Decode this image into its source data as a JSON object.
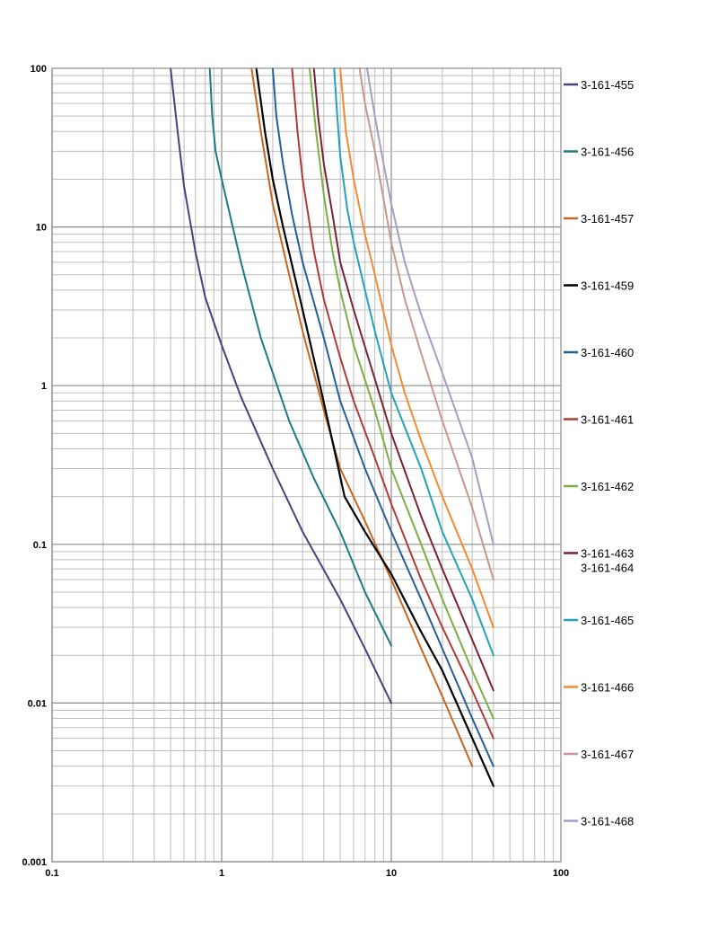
{
  "chart_data": {
    "type": "line",
    "x_scale": "log",
    "y_scale": "log",
    "xlim": [
      0.1,
      100
    ],
    "ylim": [
      0.001,
      100
    ],
    "x_ticks": [
      0.1,
      1,
      10,
      100
    ],
    "x_tick_labels": [
      "0.1",
      "1",
      "10",
      "100"
    ],
    "y_ticks": [
      0.001,
      0.01,
      0.1,
      1,
      10,
      100
    ],
    "y_tick_labels": [
      "0.001",
      "0.01",
      "0.1",
      "1",
      "10",
      "100"
    ],
    "grid": true,
    "legend_position": "right",
    "series": [
      {
        "name": "3-161-455",
        "color": "#4B3F7E",
        "x": [
          0.5,
          0.55,
          0.6,
          0.7,
          0.8,
          1,
          1.3,
          2,
          3,
          5,
          7,
          10
        ],
        "y": [
          100,
          40,
          18,
          7,
          3.6,
          1.8,
          0.85,
          0.3,
          0.12,
          0.045,
          0.022,
          0.01
        ]
      },
      {
        "name": "3-161-456",
        "color": "#1E7A85",
        "x": [
          0.85,
          0.88,
          0.92,
          1,
          1.3,
          1.7,
          2.5,
          3.5,
          5,
          7,
          10
        ],
        "y": [
          100,
          50,
          30,
          20,
          6,
          2,
          0.6,
          0.26,
          0.12,
          0.05,
          0.023
        ]
      },
      {
        "name": "3-161-457",
        "color": "#C4661F",
        "x": [
          1.5,
          1.7,
          2,
          2.5,
          3,
          4,
          5,
          7,
          10,
          15,
          20,
          30
        ],
        "y": [
          100,
          40,
          14,
          5,
          2.2,
          0.7,
          0.3,
          0.14,
          0.06,
          0.022,
          0.011,
          0.004
        ]
      },
      {
        "name": "3-161-459",
        "color": "#000000",
        "x": [
          1.6,
          1.8,
          2,
          2.3,
          3,
          3.8,
          4.6,
          5.3,
          7,
          10,
          15,
          20,
          30,
          40
        ],
        "y": [
          100,
          40,
          20,
          10,
          3,
          1,
          0.4,
          0.2,
          0.12,
          0.065,
          0.028,
          0.016,
          0.006,
          0.003
        ]
      },
      {
        "name": "3-161-460",
        "color": "#255F97",
        "x": [
          2,
          2.1,
          2.3,
          2.6,
          3,
          4,
          5,
          7,
          10,
          15,
          20,
          30,
          40
        ],
        "y": [
          100,
          50,
          25,
          12,
          6,
          2,
          0.8,
          0.3,
          0.12,
          0.045,
          0.022,
          0.008,
          0.004
        ]
      },
      {
        "name": "3-161-461",
        "color": "#B03A3A",
        "x": [
          2.6,
          2.8,
          3,
          3.5,
          4,
          5,
          6,
          8,
          10,
          15,
          20,
          30,
          40
        ],
        "y": [
          100,
          40,
          20,
          7,
          3.5,
          1.5,
          0.8,
          0.35,
          0.18,
          0.06,
          0.03,
          0.012,
          0.006
        ]
      },
      {
        "name": "3-161-462",
        "color": "#7DAD45",
        "x": [
          3.3,
          3.6,
          4,
          4.5,
          5,
          6,
          8,
          10,
          15,
          20,
          30,
          40
        ],
        "y": [
          100,
          40,
          16,
          7,
          4,
          1.8,
          0.7,
          0.3,
          0.1,
          0.045,
          0.016,
          0.008
        ]
      },
      {
        "name": "3-161-463",
        "color": "#7B2233",
        "x": [
          3.5,
          3.7,
          4,
          4.5,
          5,
          6,
          8,
          10,
          15,
          20,
          30,
          40
        ],
        "y": [
          100,
          50,
          25,
          12,
          6,
          3,
          1.1,
          0.5,
          0.15,
          0.07,
          0.025,
          0.012
        ]
      },
      {
        "name": "3-161-465",
        "color": "#21A3B8",
        "x": [
          4.6,
          4.8,
          5,
          5.5,
          6,
          7,
          8,
          10,
          15,
          20,
          30,
          40
        ],
        "y": [
          100,
          50,
          28,
          13,
          8,
          4,
          2.2,
          0.9,
          0.3,
          0.12,
          0.045,
          0.02
        ]
      },
      {
        "name": "3-161-466",
        "color": "#F28A30",
        "x": [
          5,
          5.4,
          6,
          7,
          8,
          10,
          12,
          15,
          20,
          30,
          40
        ],
        "y": [
          100,
          40,
          20,
          9,
          5,
          1.8,
          0.9,
          0.45,
          0.2,
          0.07,
          0.03
        ]
      },
      {
        "name": "3-161-467",
        "color": "#CC9490",
        "x": [
          6.5,
          7,
          8,
          9,
          10,
          12,
          15,
          20,
          30,
          40
        ],
        "y": [
          100,
          60,
          30,
          15,
          8,
          3.5,
          1.6,
          0.6,
          0.17,
          0.06
        ]
      },
      {
        "name": "3-161-468",
        "color": "#A59EC2",
        "x": [
          7.2,
          8,
          9,
          10,
          12,
          15,
          20,
          30,
          40
        ],
        "y": [
          100,
          50,
          25,
          14,
          6,
          2.8,
          1.2,
          0.35,
          0.1
        ]
      }
    ],
    "legend": [
      {
        "label": "3-161-455",
        "color": "#4B3F7E"
      },
      {
        "label": "3-161-456",
        "color": "#1E7A85"
      },
      {
        "label": "3-161-457",
        "color": "#C4661F"
      },
      {
        "label": "3-161-459",
        "color": "#000000"
      },
      {
        "label": "3-161-460",
        "color": "#255F97"
      },
      {
        "label": "3-161-461",
        "color": "#B03A3A"
      },
      {
        "label": "3-161-462",
        "color": "#7DAD45"
      },
      {
        "label": "3-161-463",
        "sublabel": "3-161-464",
        "color": "#7B2233"
      },
      {
        "label": "3-161-465",
        "color": "#21A3B8"
      },
      {
        "label": "3-161-466",
        "color": "#F28A30"
      },
      {
        "label": "3-161-467",
        "color": "#CC9490"
      },
      {
        "label": "3-161-468",
        "color": "#A59EC2"
      }
    ]
  }
}
